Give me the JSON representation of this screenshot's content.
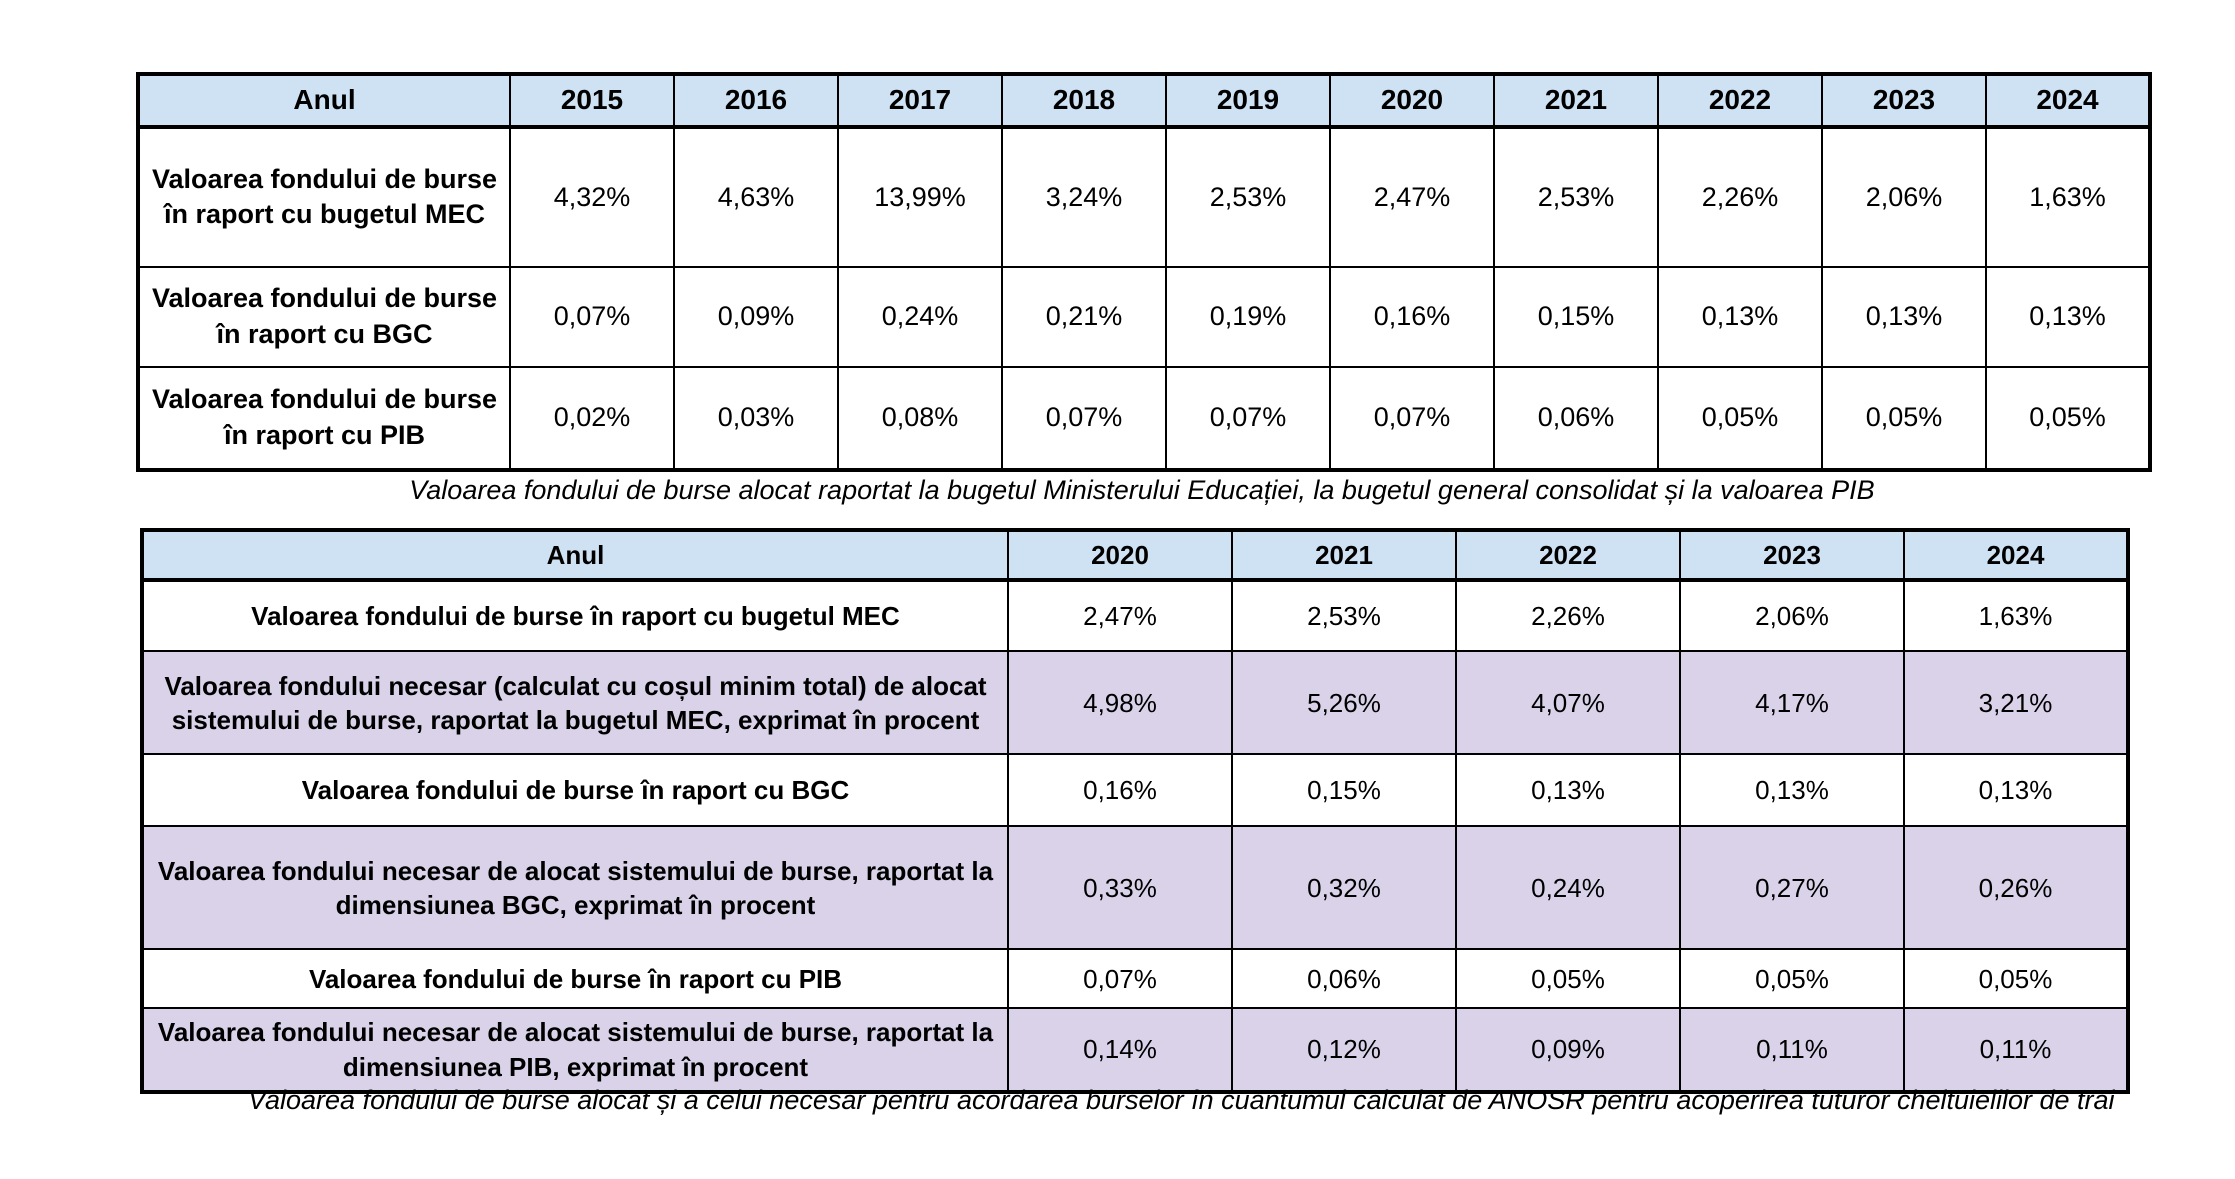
{
  "colors": {
    "header_bg": "#cfe2f3",
    "highlight_bg": "#d9d2e9",
    "border": "#000000",
    "text": "#000000"
  },
  "table1": {
    "header": [
      "Anul",
      "2015",
      "2016",
      "2017",
      "2018",
      "2019",
      "2020",
      "2021",
      "2022",
      "2023",
      "2024"
    ],
    "rows": [
      {
        "label": "Valoarea fondului de burse în raport cu bugetul MEC",
        "values": [
          "4,32%",
          "4,63%",
          "13,99%",
          "3,24%",
          "2,53%",
          "2,47%",
          "2,53%",
          "2,26%",
          "2,06%",
          "1,63%"
        ],
        "highlight": false
      },
      {
        "label": "Valoarea fondului de burse în raport cu BGC",
        "values": [
          "0,07%",
          "0,09%",
          "0,24%",
          "0,21%",
          "0,19%",
          "0,16%",
          "0,15%",
          "0,13%",
          "0,13%",
          "0,13%"
        ],
        "highlight": false
      },
      {
        "label": "Valoarea fondului de burse în raport cu PIB",
        "values": [
          "0,02%",
          "0,03%",
          "0,08%",
          "0,07%",
          "0,07%",
          "0,07%",
          "0,06%",
          "0,05%",
          "0,05%",
          "0,05%"
        ],
        "highlight": false
      }
    ],
    "caption": "Valoarea fondului de burse alocat raportat la bugetul Ministerului Educației, la bugetul general consolidat și la valoarea PIB"
  },
  "table2": {
    "header": [
      "Anul",
      "2020",
      "2021",
      "2022",
      "2023",
      "2024"
    ],
    "rows": [
      {
        "label": "Valoarea fondului de burse în raport cu bugetul MEC",
        "values": [
          "2,47%",
          "2,53%",
          "2,26%",
          "2,06%",
          "1,63%"
        ],
        "highlight": false
      },
      {
        "label": "Valoarea fondului necesar (calculat cu coșul minim total) de alocat sistemului de burse, raportat la bugetul MEC, exprimat în procent",
        "values": [
          "4,98%",
          "5,26%",
          "4,07%",
          "4,17%",
          "3,21%"
        ],
        "highlight": true
      },
      {
        "label": "Valoarea fondului de burse în raport cu BGC",
        "values": [
          "0,16%",
          "0,15%",
          "0,13%",
          "0,13%",
          "0,13%"
        ],
        "highlight": false
      },
      {
        "label": "Valoarea fondului necesar de alocat sistemului de burse, raportat la dimensiunea BGC, exprimat în procent",
        "values": [
          "0,33%",
          "0,32%",
          "0,24%",
          "0,27%",
          "0,26%"
        ],
        "highlight": true
      },
      {
        "label": "Valoarea fondului de burse în raport cu PIB",
        "values": [
          "0,07%",
          "0,06%",
          "0,05%",
          "0,05%",
          "0,05%"
        ],
        "highlight": false
      },
      {
        "label": "Valoarea fondului necesar de alocat sistemului de burse, raportat la dimensiunea PIB, exprimat în procent",
        "values": [
          "0,14%",
          "0,12%",
          "0,09%",
          "0,11%",
          "0,11%"
        ],
        "highlight": true
      }
    ],
    "caption": "Valoarea fondului de burse alocat și a celui necesar pentru acordarea burselor în cuantumul calculat de ANOSR pentru acoperirea tuturor cheltuielilor de trai"
  }
}
